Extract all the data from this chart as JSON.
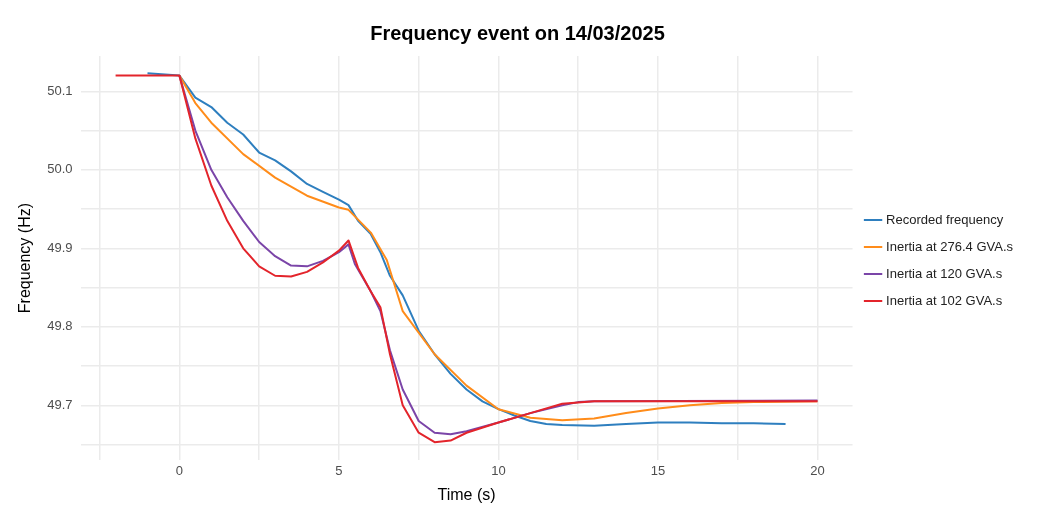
{
  "chart_data": {
    "type": "line",
    "title": "Frequency event on 14/03/2025",
    "xlabel": "Time (s)",
    "ylabel": "Frequency (Hz)",
    "xlim": [
      -3.1,
      21.1
    ],
    "ylim": [
      49.63,
      50.145
    ],
    "xticks": [
      {
        "value": -2.5,
        "label": null
      },
      0,
      {
        "value": 2.5,
        "label": null
      },
      5,
      {
        "value": 7.5,
        "label": null
      },
      10,
      {
        "value": 12.5,
        "label": null
      },
      15,
      {
        "value": 17.5,
        "label": null
      },
      20
    ],
    "yticks": [
      {
        "value": 49.65,
        "label": null
      },
      {
        "value": 49.7,
        "label": "49.7"
      },
      {
        "value": 49.75,
        "label": null
      },
      {
        "value": 49.8,
        "label": "49.8"
      },
      {
        "value": 49.85,
        "label": null
      },
      {
        "value": 49.9,
        "label": "49.9"
      },
      {
        "value": 49.95,
        "label": null
      },
      {
        "value": 50.0,
        "label": "50.0"
      },
      {
        "value": 50.05,
        "label": null
      },
      {
        "value": 50.1,
        "label": "50.1"
      }
    ],
    "grid": true,
    "legend": "right",
    "marker": "none",
    "line_style": "solid",
    "series": [
      {
        "name": "Recorded frequency",
        "color": "#2e7fbf",
        "x": [
          -1,
          0,
          0.5,
          1,
          1.5,
          2,
          2.5,
          3,
          3.5,
          4,
          4.5,
          5,
          5.3,
          5.6,
          6,
          6.3,
          6.6,
          7,
          7.5,
          8,
          8.5,
          9,
          9.5,
          10,
          10.5,
          11,
          11.5,
          12,
          13,
          14,
          15,
          16,
          17,
          18,
          19
        ],
        "values": [
          50.123,
          50.12,
          50.092,
          50.08,
          50.06,
          50.045,
          50.022,
          50.012,
          49.998,
          49.982,
          49.972,
          49.962,
          49.955,
          49.935,
          49.918,
          49.895,
          49.865,
          49.84,
          49.795,
          49.765,
          49.74,
          49.72,
          49.705,
          49.695,
          49.687,
          49.68,
          49.676,
          49.675,
          49.674,
          49.676,
          49.678,
          49.678,
          49.677,
          49.677,
          49.676
        ]
      },
      {
        "name": "Inertia at 276.4 GVA.s",
        "color": "#ff8c1a",
        "x": [
          0,
          0.5,
          1,
          2,
          3,
          4,
          5,
          5.3,
          6,
          6.5,
          7,
          8,
          9,
          10,
          11,
          12,
          13,
          14,
          15,
          16,
          17,
          18,
          20
        ],
        "values": [
          50.12,
          50.085,
          50.06,
          50.02,
          49.99,
          49.967,
          49.952,
          49.949,
          49.92,
          49.885,
          49.82,
          49.765,
          49.725,
          49.695,
          49.684,
          49.681,
          49.683,
          49.69,
          49.696,
          49.7,
          49.703,
          49.704,
          49.705
        ]
      },
      {
        "name": "Inertia at 120 GVA.s",
        "color": "#7b45a8",
        "x": [
          0,
          0.5,
          1,
          1.5,
          2,
          2.5,
          3,
          3.5,
          4,
          4.5,
          5,
          5.3,
          5.5,
          6,
          6.3,
          6.6,
          7,
          7.5,
          8,
          8.5,
          9,
          10,
          11,
          12,
          12.5,
          13,
          20
        ],
        "values": [
          50.12,
          50.05,
          50.0,
          49.965,
          49.935,
          49.908,
          49.89,
          49.878,
          49.877,
          49.884,
          49.895,
          49.905,
          49.88,
          49.845,
          49.82,
          49.77,
          49.72,
          49.68,
          49.665,
          49.663,
          49.667,
          49.678,
          49.69,
          49.7,
          49.704,
          49.705,
          49.706
        ]
      },
      {
        "name": "Inertia at 102 GVA.s",
        "color": "#e3242b",
        "x": [
          -2,
          0,
          0.5,
          1,
          1.5,
          2,
          2.5,
          3,
          3.5,
          4,
          4.5,
          5,
          5.3,
          5.6,
          6,
          6.3,
          6.6,
          7,
          7.5,
          8,
          8.5,
          9,
          10,
          11,
          12,
          13,
          20
        ],
        "values": [
          50.12,
          50.12,
          50.04,
          49.98,
          49.935,
          49.9,
          49.877,
          49.865,
          49.864,
          49.87,
          49.882,
          49.897,
          49.91,
          49.875,
          49.845,
          49.825,
          49.765,
          49.7,
          49.665,
          49.653,
          49.655,
          49.665,
          49.678,
          49.69,
          49.702,
          49.705,
          49.705
        ]
      }
    ]
  }
}
